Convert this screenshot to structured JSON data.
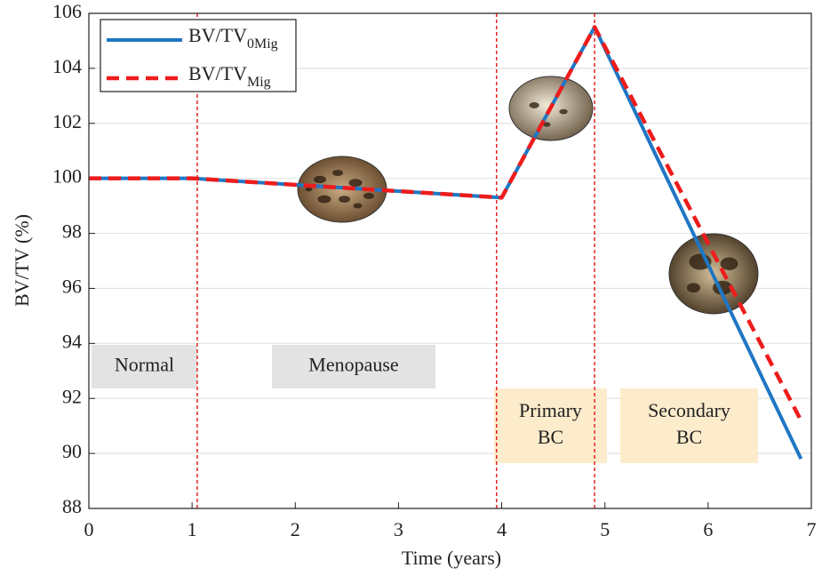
{
  "chart_data": {
    "type": "line",
    "x_label": "Time (years)",
    "y_label": "BV/TV (%)",
    "x": [
      0,
      1,
      4,
      4.9,
      6.9
    ],
    "series": [
      {
        "name": "BV/TV",
        "subscript": "0Mig",
        "color": "#1f77c4",
        "style": "solid",
        "values": [
          100,
          100,
          99.3,
          105.5,
          89.8
        ]
      },
      {
        "name": "BV/TV",
        "subscript": "Mig",
        "color": "#ee1c1c",
        "style": "dashed",
        "values": [
          100,
          100,
          99.3,
          105.5,
          91.2
        ]
      }
    ],
    "xlim": [
      0,
      7
    ],
    "xticks": [
      0,
      1,
      2,
      3,
      4,
      5,
      6,
      7
    ],
    "ylim": [
      88,
      106
    ],
    "yticks": [
      88,
      90,
      92,
      94,
      96,
      98,
      100,
      102,
      104,
      106
    ],
    "grid": true,
    "legend": "upper left",
    "phase_lines": [
      1.05,
      3.95,
      4.9
    ],
    "phases": [
      {
        "lines": [
          "Normal"
        ],
        "color": "#e3e3e3"
      },
      {
        "lines": [
          "Menopause"
        ],
        "color": "#e3e3e3"
      },
      {
        "lines": [
          "Primary",
          "BC"
        ],
        "color": "#fdeccb"
      },
      {
        "lines": [
          "Secondary",
          "BC"
        ],
        "color": "#fdeccb"
      }
    ]
  }
}
